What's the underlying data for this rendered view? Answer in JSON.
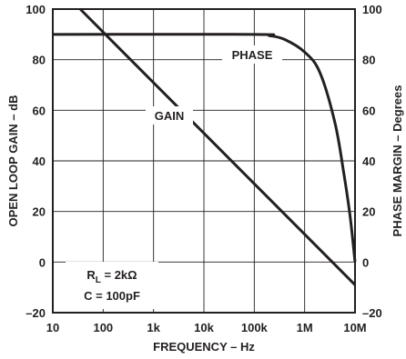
{
  "chart_data": {
    "type": "line",
    "xlabel": "FREQUENCY – Hz",
    "ylabel": "OPEN LOOP GAIN – dB",
    "y2label": "PHASE MARGIN – Degrees",
    "x_scale": "log",
    "xlim": [
      10,
      10000000
    ],
    "ylim": [
      -20,
      100
    ],
    "y2lim": [
      -20,
      100
    ],
    "x_ticks": [
      10,
      100,
      1000,
      10000,
      100000,
      1000000,
      10000000
    ],
    "x_tick_labels": [
      "10",
      "100",
      "1k",
      "10k",
      "100k",
      "1M",
      "10M"
    ],
    "y_ticks": [
      -20,
      0,
      20,
      40,
      60,
      80,
      100
    ],
    "y_tick_labels": [
      "–20",
      "0",
      "20",
      "40",
      "60",
      "80",
      "100"
    ],
    "y2_ticks": [
      -20,
      0,
      20,
      40,
      60,
      80,
      100
    ],
    "y2_tick_labels": [
      "–20",
      "0",
      "20",
      "40",
      "60",
      "80",
      "100"
    ],
    "grid": true,
    "series": [
      {
        "name": "GAIN",
        "axis": "left",
        "x": [
          35,
          10000000
        ],
        "y": [
          100,
          -9
        ]
      },
      {
        "name": "PHASE",
        "axis": "right",
        "x": [
          10,
          100000,
          200000,
          400000,
          1000000,
          2000000,
          4000000,
          6000000,
          8000000,
          10000000
        ],
        "y": [
          90,
          90,
          89.5,
          88,
          83,
          75,
          55,
          35,
          18,
          0
        ]
      }
    ],
    "annotations": {
      "gain_label": "GAIN",
      "phase_label": "PHASE",
      "rl_main": "R",
      "rl_sub": "L",
      "rl_value": " = 2kΩ",
      "cap_label": "C = 100pF"
    }
  }
}
